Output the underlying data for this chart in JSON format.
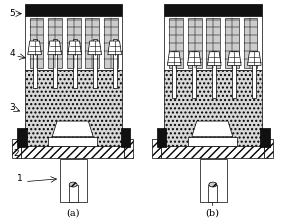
{
  "label_a": "(a)",
  "label_b": "(b)",
  "numbers": [
    "1",
    "2",
    "3",
    "4",
    "5"
  ],
  "bg_color": "#ffffff",
  "line_color": "#000000",
  "fig_width": 2.86,
  "fig_height": 2.19,
  "dpi": 100,
  "font_size_label": 7,
  "font_size_number": 6.5,
  "n_heads": 5,
  "gray_sand": "#d8d8d8",
  "gray_dark": "#111111",
  "gray_hatch": "#aaaaaa"
}
